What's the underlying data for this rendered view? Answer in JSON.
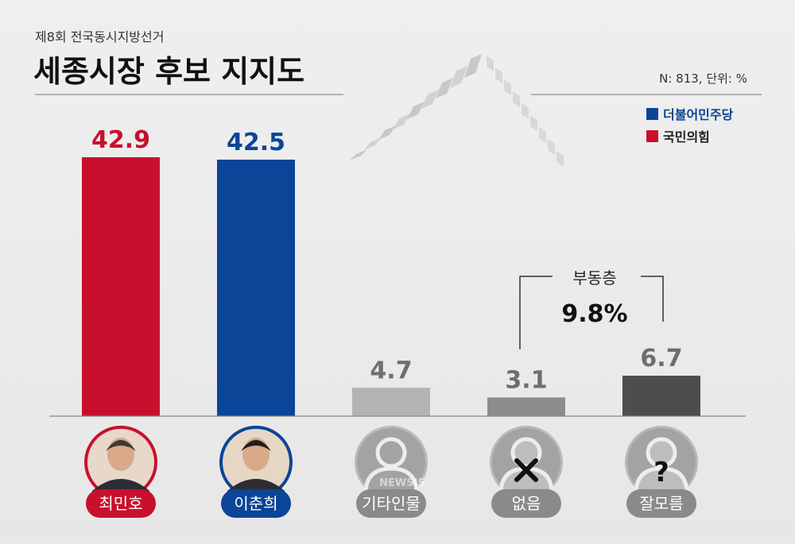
{
  "header": {
    "overline": "제8회 전국동시지방선거",
    "title": "세종시장 후보 지지도",
    "sample_note": "N: 813, 단위: %"
  },
  "legend": [
    {
      "label": "더불어민주당",
      "color": "#0a4597"
    },
    {
      "label": "국민의힘",
      "color": "#c8102e"
    }
  ],
  "bracket": {
    "label": "부동층",
    "value": "9.8%"
  },
  "watermark": "NEWSIS",
  "chart_data": {
    "type": "bar",
    "categories": [
      "최민호",
      "이춘희",
      "기타인물",
      "없음",
      "잘모름"
    ],
    "values": [
      42.9,
      42.5,
      4.7,
      3.1,
      6.7
    ],
    "value_labels": [
      "42.9",
      "42.5",
      "4.7",
      "3.1",
      "6.7"
    ],
    "colors": [
      "#c8102e",
      "#0a4597",
      "#b3b3b3",
      "#8c8c8c",
      "#4d4d4d"
    ],
    "label_colors": [
      "#c8102e",
      "#0a4597",
      "#6e6e6e",
      "#6e6e6e",
      "#6e6e6e"
    ],
    "badge_colors": [
      "#c8102e",
      "#0a4597",
      "#8a8a8a",
      "#8a8a8a",
      "#8a8a8a"
    ],
    "icons": [
      "candidate-photo",
      "candidate-photo",
      "person-icon",
      "x-icon",
      "question-icon"
    ],
    "ylim": [
      0,
      50
    ]
  }
}
